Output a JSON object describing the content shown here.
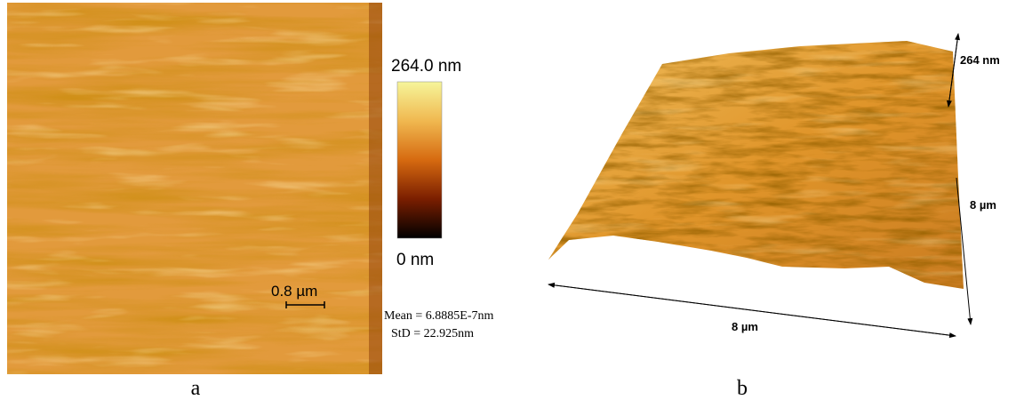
{
  "panel_a": {
    "colorbar": {
      "max_label": "264.0 nm",
      "min_label": "0 nm"
    },
    "scale_bar": "0.8 µm",
    "stats": {
      "mean": "Mean = 6.8885E-7nm",
      "std": "StD = 22.925nm"
    },
    "caption": "a"
  },
  "panel_b": {
    "height_label": "264 nm",
    "y_label": "8 µm",
    "x_label": "8 µm",
    "caption": "b"
  }
}
